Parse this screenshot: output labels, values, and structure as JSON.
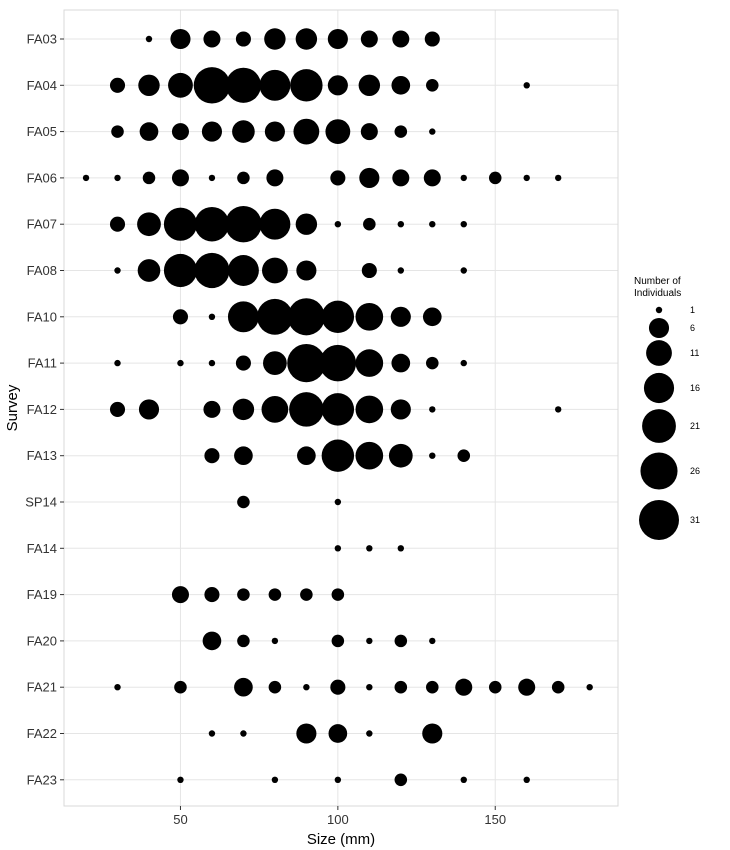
{
  "chart_data": {
    "type": "scatter",
    "xlabel": "Size (mm)",
    "ylabel": "Survey",
    "xlim": [
      13,
      189
    ],
    "x_ticks": [
      50,
      100,
      150
    ],
    "grid": true,
    "legend_position": "right",
    "legend": {
      "title_lines": [
        "Number of",
        "Individuals"
      ],
      "values": [
        1,
        6,
        11,
        16,
        21,
        26,
        31
      ]
    },
    "size_range": [
      1,
      31
    ],
    "categories": [
      "FA03",
      "FA04",
      "FA05",
      "FA06",
      "FA07",
      "FA08",
      "FA10",
      "FA11",
      "FA12",
      "FA13",
      "SP14",
      "FA14",
      "FA19",
      "FA20",
      "FA21",
      "FA22",
      "FA23"
    ],
    "points": [
      {
        "survey": "FA03",
        "x": 40,
        "n": 1
      },
      {
        "survey": "FA03",
        "x": 50,
        "n": 6
      },
      {
        "survey": "FA03",
        "x": 60,
        "n": 4
      },
      {
        "survey": "FA03",
        "x": 70,
        "n": 3
      },
      {
        "survey": "FA03",
        "x": 80,
        "n": 7
      },
      {
        "survey": "FA03",
        "x": 90,
        "n": 7
      },
      {
        "survey": "FA03",
        "x": 100,
        "n": 6
      },
      {
        "survey": "FA03",
        "x": 110,
        "n": 4
      },
      {
        "survey": "FA03",
        "x": 120,
        "n": 4
      },
      {
        "survey": "FA03",
        "x": 130,
        "n": 3
      },
      {
        "survey": "FA04",
        "x": 30,
        "n": 3
      },
      {
        "survey": "FA04",
        "x": 40,
        "n": 7
      },
      {
        "survey": "FA04",
        "x": 50,
        "n": 10
      },
      {
        "survey": "FA04",
        "x": 60,
        "n": 25
      },
      {
        "survey": "FA04",
        "x": 70,
        "n": 23
      },
      {
        "survey": "FA04",
        "x": 80,
        "n": 17
      },
      {
        "survey": "FA04",
        "x": 90,
        "n": 19
      },
      {
        "survey": "FA04",
        "x": 100,
        "n": 6
      },
      {
        "survey": "FA04",
        "x": 110,
        "n": 7
      },
      {
        "survey": "FA04",
        "x": 120,
        "n": 5
      },
      {
        "survey": "FA04",
        "x": 130,
        "n": 2
      },
      {
        "survey": "FA04",
        "x": 160,
        "n": 1
      },
      {
        "survey": "FA05",
        "x": 30,
        "n": 2
      },
      {
        "survey": "FA05",
        "x": 40,
        "n": 5
      },
      {
        "survey": "FA05",
        "x": 50,
        "n": 4
      },
      {
        "survey": "FA05",
        "x": 60,
        "n": 6
      },
      {
        "survey": "FA05",
        "x": 70,
        "n": 8
      },
      {
        "survey": "FA05",
        "x": 80,
        "n": 6
      },
      {
        "survey": "FA05",
        "x": 90,
        "n": 11
      },
      {
        "survey": "FA05",
        "x": 100,
        "n": 10
      },
      {
        "survey": "FA05",
        "x": 110,
        "n": 4
      },
      {
        "survey": "FA05",
        "x": 120,
        "n": 2
      },
      {
        "survey": "FA05",
        "x": 130,
        "n": 1
      },
      {
        "survey": "FA06",
        "x": 20,
        "n": 1
      },
      {
        "survey": "FA06",
        "x": 30,
        "n": 1
      },
      {
        "survey": "FA06",
        "x": 40,
        "n": 2
      },
      {
        "survey": "FA06",
        "x": 50,
        "n": 4
      },
      {
        "survey": "FA06",
        "x": 60,
        "n": 1
      },
      {
        "survey": "FA06",
        "x": 70,
        "n": 2
      },
      {
        "survey": "FA06",
        "x": 80,
        "n": 4
      },
      {
        "survey": "FA06",
        "x": 100,
        "n": 3
      },
      {
        "survey": "FA06",
        "x": 110,
        "n": 6
      },
      {
        "survey": "FA06",
        "x": 120,
        "n": 4
      },
      {
        "survey": "FA06",
        "x": 130,
        "n": 4
      },
      {
        "survey": "FA06",
        "x": 140,
        "n": 1
      },
      {
        "survey": "FA06",
        "x": 150,
        "n": 2
      },
      {
        "survey": "FA06",
        "x": 160,
        "n": 1
      },
      {
        "survey": "FA06",
        "x": 170,
        "n": 1
      },
      {
        "survey": "FA07",
        "x": 30,
        "n": 3
      },
      {
        "survey": "FA07",
        "x": 40,
        "n": 9
      },
      {
        "survey": "FA07",
        "x": 50,
        "n": 20
      },
      {
        "survey": "FA07",
        "x": 60,
        "n": 22
      },
      {
        "survey": "FA07",
        "x": 70,
        "n": 25
      },
      {
        "survey": "FA07",
        "x": 80,
        "n": 17
      },
      {
        "survey": "FA07",
        "x": 90,
        "n": 7
      },
      {
        "survey": "FA07",
        "x": 100,
        "n": 1
      },
      {
        "survey": "FA07",
        "x": 110,
        "n": 2
      },
      {
        "survey": "FA07",
        "x": 120,
        "n": 1
      },
      {
        "survey": "FA07",
        "x": 130,
        "n": 1
      },
      {
        "survey": "FA07",
        "x": 140,
        "n": 1
      },
      {
        "survey": "FA08",
        "x": 30,
        "n": 1
      },
      {
        "survey": "FA08",
        "x": 40,
        "n": 8
      },
      {
        "survey": "FA08",
        "x": 50,
        "n": 20
      },
      {
        "survey": "FA08",
        "x": 60,
        "n": 23
      },
      {
        "survey": "FA08",
        "x": 70,
        "n": 17
      },
      {
        "survey": "FA08",
        "x": 80,
        "n": 11
      },
      {
        "survey": "FA08",
        "x": 90,
        "n": 6
      },
      {
        "survey": "FA08",
        "x": 110,
        "n": 3
      },
      {
        "survey": "FA08",
        "x": 120,
        "n": 1
      },
      {
        "survey": "FA08",
        "x": 140,
        "n": 1
      },
      {
        "survey": "FA10",
        "x": 50,
        "n": 3
      },
      {
        "survey": "FA10",
        "x": 60,
        "n": 1
      },
      {
        "survey": "FA10",
        "x": 70,
        "n": 17
      },
      {
        "survey": "FA10",
        "x": 80,
        "n": 24
      },
      {
        "survey": "FA10",
        "x": 90,
        "n": 26
      },
      {
        "survey": "FA10",
        "x": 100,
        "n": 19
      },
      {
        "survey": "FA10",
        "x": 110,
        "n": 13
      },
      {
        "survey": "FA10",
        "x": 120,
        "n": 6
      },
      {
        "survey": "FA10",
        "x": 130,
        "n": 5
      },
      {
        "survey": "FA11",
        "x": 30,
        "n": 1
      },
      {
        "survey": "FA11",
        "x": 50,
        "n": 1
      },
      {
        "survey": "FA11",
        "x": 60,
        "n": 1
      },
      {
        "survey": "FA11",
        "x": 70,
        "n": 3
      },
      {
        "survey": "FA11",
        "x": 80,
        "n": 9
      },
      {
        "survey": "FA11",
        "x": 90,
        "n": 28
      },
      {
        "survey": "FA11",
        "x": 100,
        "n": 25
      },
      {
        "survey": "FA11",
        "x": 110,
        "n": 13
      },
      {
        "survey": "FA11",
        "x": 120,
        "n": 5
      },
      {
        "survey": "FA11",
        "x": 130,
        "n": 2
      },
      {
        "survey": "FA11",
        "x": 140,
        "n": 1
      },
      {
        "survey": "FA12",
        "x": 30,
        "n": 3
      },
      {
        "survey": "FA12",
        "x": 40,
        "n": 6
      },
      {
        "survey": "FA12",
        "x": 60,
        "n": 4
      },
      {
        "survey": "FA12",
        "x": 70,
        "n": 7
      },
      {
        "survey": "FA12",
        "x": 80,
        "n": 12
      },
      {
        "survey": "FA12",
        "x": 90,
        "n": 22
      },
      {
        "survey": "FA12",
        "x": 100,
        "n": 19
      },
      {
        "survey": "FA12",
        "x": 110,
        "n": 13
      },
      {
        "survey": "FA12",
        "x": 120,
        "n": 6
      },
      {
        "survey": "FA12",
        "x": 130,
        "n": 1
      },
      {
        "survey": "FA12",
        "x": 170,
        "n": 1
      },
      {
        "survey": "FA13",
        "x": 60,
        "n": 3
      },
      {
        "survey": "FA13",
        "x": 70,
        "n": 5
      },
      {
        "survey": "FA13",
        "x": 90,
        "n": 5
      },
      {
        "survey": "FA13",
        "x": 100,
        "n": 19
      },
      {
        "survey": "FA13",
        "x": 110,
        "n": 13
      },
      {
        "survey": "FA13",
        "x": 120,
        "n": 9
      },
      {
        "survey": "FA13",
        "x": 130,
        "n": 1
      },
      {
        "survey": "FA13",
        "x": 140,
        "n": 2
      },
      {
        "survey": "SP14",
        "x": 70,
        "n": 2
      },
      {
        "survey": "SP14",
        "x": 100,
        "n": 1
      },
      {
        "survey": "FA14",
        "x": 100,
        "n": 1
      },
      {
        "survey": "FA14",
        "x": 110,
        "n": 1
      },
      {
        "survey": "FA14",
        "x": 120,
        "n": 1
      },
      {
        "survey": "FA19",
        "x": 50,
        "n": 4
      },
      {
        "survey": "FA19",
        "x": 60,
        "n": 3
      },
      {
        "survey": "FA19",
        "x": 70,
        "n": 2
      },
      {
        "survey": "FA19",
        "x": 80,
        "n": 2
      },
      {
        "survey": "FA19",
        "x": 90,
        "n": 2
      },
      {
        "survey": "FA19",
        "x": 100,
        "n": 2
      },
      {
        "survey": "FA20",
        "x": 60,
        "n": 5
      },
      {
        "survey": "FA20",
        "x": 70,
        "n": 2
      },
      {
        "survey": "FA20",
        "x": 80,
        "n": 1
      },
      {
        "survey": "FA20",
        "x": 100,
        "n": 2
      },
      {
        "survey": "FA20",
        "x": 110,
        "n": 1
      },
      {
        "survey": "FA20",
        "x": 120,
        "n": 2
      },
      {
        "survey": "FA20",
        "x": 130,
        "n": 1
      },
      {
        "survey": "FA21",
        "x": 30,
        "n": 1
      },
      {
        "survey": "FA21",
        "x": 50,
        "n": 2
      },
      {
        "survey": "FA21",
        "x": 70,
        "n": 5
      },
      {
        "survey": "FA21",
        "x": 80,
        "n": 2
      },
      {
        "survey": "FA21",
        "x": 90,
        "n": 1
      },
      {
        "survey": "FA21",
        "x": 100,
        "n": 3
      },
      {
        "survey": "FA21",
        "x": 110,
        "n": 1
      },
      {
        "survey": "FA21",
        "x": 120,
        "n": 2
      },
      {
        "survey": "FA21",
        "x": 130,
        "n": 2
      },
      {
        "survey": "FA21",
        "x": 140,
        "n": 4
      },
      {
        "survey": "FA21",
        "x": 150,
        "n": 2
      },
      {
        "survey": "FA21",
        "x": 160,
        "n": 4
      },
      {
        "survey": "FA21",
        "x": 170,
        "n": 2
      },
      {
        "survey": "FA21",
        "x": 180,
        "n": 1
      },
      {
        "survey": "FA22",
        "x": 60,
        "n": 1
      },
      {
        "survey": "FA22",
        "x": 70,
        "n": 1
      },
      {
        "survey": "FA22",
        "x": 90,
        "n": 6
      },
      {
        "survey": "FA22",
        "x": 100,
        "n": 5
      },
      {
        "survey": "FA22",
        "x": 110,
        "n": 1
      },
      {
        "survey": "FA22",
        "x": 130,
        "n": 6
      },
      {
        "survey": "FA23",
        "x": 50,
        "n": 1
      },
      {
        "survey": "FA23",
        "x": 80,
        "n": 1
      },
      {
        "survey": "FA23",
        "x": 100,
        "n": 1
      },
      {
        "survey": "FA23",
        "x": 120,
        "n": 2
      },
      {
        "survey": "FA23",
        "x": 140,
        "n": 1
      },
      {
        "survey": "FA23",
        "x": 160,
        "n": 1
      }
    ],
    "colors": {
      "point": "#000000",
      "grid": "#e5e5e5",
      "background": "#ffffff"
    }
  }
}
